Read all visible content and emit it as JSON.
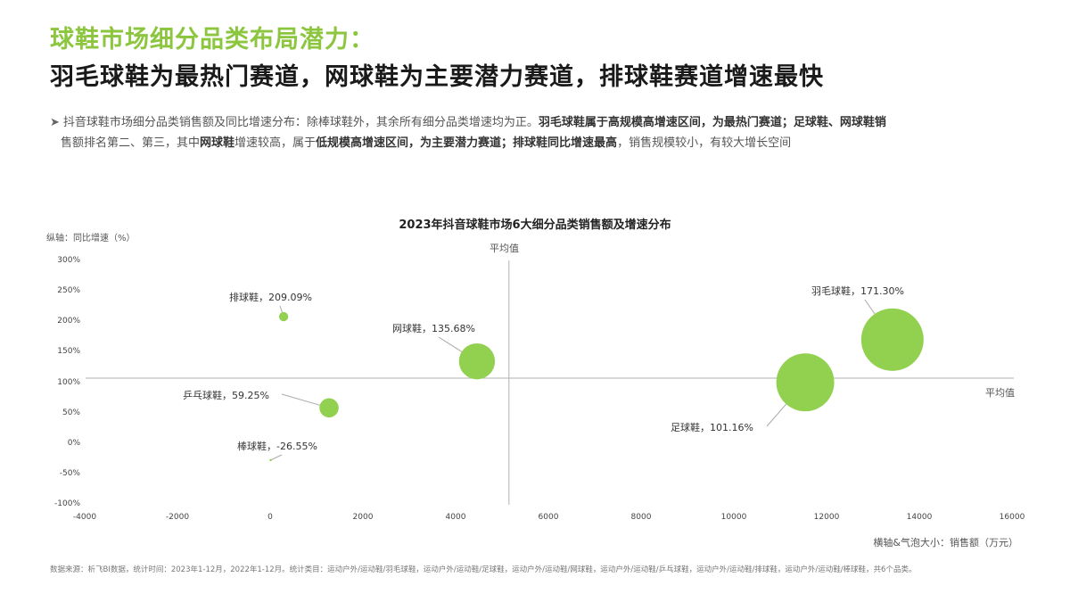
{
  "header": {
    "title_line1": "球鞋市场细分品类布局潜力：",
    "title_line2": "羽毛球鞋为最热门赛道，网球鞋为主要潜力赛道，排球鞋赛道增速最快"
  },
  "summary": {
    "arrow": "➤",
    "seg1": "抖音球鞋市场细分品类销售额及同比增速分布：除棒球鞋外，其余所有细分品类增速均为正。",
    "seg2_bold": "羽毛球鞋属于高规模高增速区间，为最热门赛道；足球鞋、网球鞋销",
    "seg3": "售额排名第二、第三，其中",
    "seg4_bold": "网球鞋",
    "seg5": "增速较高，属于",
    "seg6_bold": "低规模高增速区间，为主要潜力赛道；排球鞋同比增速最高",
    "seg7": "，销售规模较小，有较大增长空间"
  },
  "chart_data": {
    "type": "scatter",
    "subtype": "bubble",
    "title": "2023年抖音球鞋市场6大细分品类销售额及增速分布",
    "xlabel": "横轴&气泡大小：销售额（万元）",
    "ylabel": "纵轴：同比增速（%）",
    "xlim": [
      -4000,
      16000
    ],
    "ylim": [
      -100,
      300
    ],
    "x_ticks": [
      "-4000",
      "-2000",
      "0",
      "2000",
      "4000",
      "6000",
      "8000",
      "10000",
      "12000",
      "14000",
      "16000"
    ],
    "y_ticks": [
      "300%",
      "250%",
      "200%",
      "150%",
      "100%",
      "50%",
      "0%",
      "-50%",
      "-100%"
    ],
    "average_lines": {
      "x": 5150,
      "y": 108,
      "label": "平均值"
    },
    "grid": false,
    "legend": "none",
    "bubble_color": "#92d050",
    "points": [
      {
        "name": "排球鞋",
        "label": "排球鞋，209.09%",
        "x": 290,
        "y": 209.09,
        "size": 290
      },
      {
        "name": "网球鞋",
        "label": "网球鞋，135.68%",
        "x": 4460,
        "y": 135.68,
        "size": 4460
      },
      {
        "name": "乒乓球鞋",
        "label": "乒乓球鞋，59.25%",
        "x": 1270,
        "y": 59.25,
        "size": 1270
      },
      {
        "name": "棒球鞋",
        "label": "棒球鞋，-26.55%",
        "x": 10,
        "y": -26.55,
        "size": 10
      },
      {
        "name": "羽毛球鞋",
        "label": "羽毛球鞋，171.30%",
        "x": 13420,
        "y": 171.3,
        "size": 13420
      },
      {
        "name": "足球鞋",
        "label": "足球鞋，101.16%",
        "x": 11540,
        "y": 101.16,
        "size": 11540
      }
    ]
  },
  "footer": {
    "source": "数据来源：析飞BI数据，统计时间：2023年1-12月，2022年1-12月。统计类目：运动户外/运动鞋/羽毛球鞋，运动户外/运动鞋/足球鞋，运动户外/运动鞋/网球鞋，运动户外/运动鞋/乒乓球鞋，运动户外/运动鞋/排球鞋，运动户外/运动鞋/棒球鞋，共6个品类。"
  }
}
